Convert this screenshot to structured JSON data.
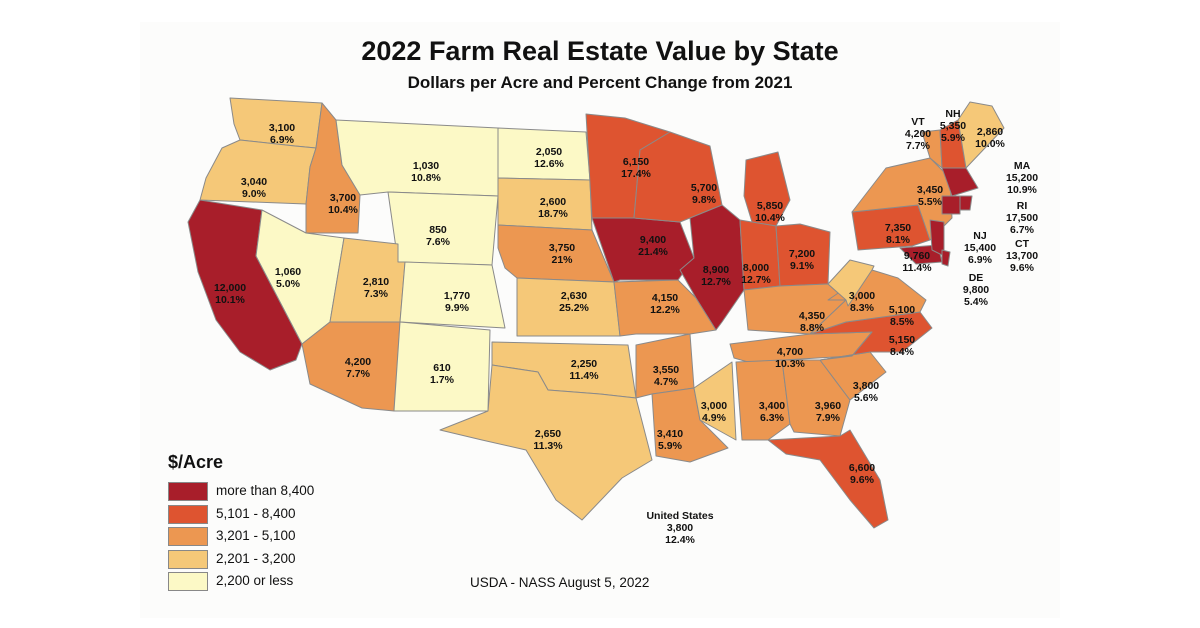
{
  "title": "2022 Farm Real Estate Value by State",
  "subtitle": "Dollars per Acre and Percent Change from 2021",
  "legend": {
    "title": "$/Acre",
    "items": [
      {
        "label": "more than 8,400",
        "color": "#a81e2a"
      },
      {
        "label": "5,101 - 8,400",
        "color": "#de5430"
      },
      {
        "label": "3,201 - 5,100",
        "color": "#ec9751"
      },
      {
        "label": "2,201 - 3,200",
        "color": "#f5c878"
      },
      {
        "label": "2,200 or less",
        "color": "#fcf9c6"
      }
    ]
  },
  "states": [
    {
      "code": "WA",
      "value": "3,100",
      "change": "6.9%",
      "class": 3
    },
    {
      "code": "OR",
      "value": "3,040",
      "change": "9.0%",
      "class": 3
    },
    {
      "code": "CA",
      "value": "12,000",
      "change": "10.1%",
      "class": 0
    },
    {
      "code": "ID",
      "value": "3,700",
      "change": "10.4%",
      "class": 2
    },
    {
      "code": "NV",
      "value": "1,060",
      "change": "5.0%",
      "class": 4
    },
    {
      "code": "MT",
      "value": "1,030",
      "change": "10.8%",
      "class": 4
    },
    {
      "code": "WY",
      "value": "850",
      "change": "7.6%",
      "class": 4
    },
    {
      "code": "UT",
      "value": "2,810",
      "change": "7.3%",
      "class": 3
    },
    {
      "code": "CO",
      "value": "1,770",
      "change": "9.9%",
      "class": 4
    },
    {
      "code": "AZ",
      "value": "4,200",
      "change": "7.7%",
      "class": 2
    },
    {
      "code": "NM",
      "value": "610",
      "change": "1.7%",
      "class": 4
    },
    {
      "code": "ND",
      "value": "2,050",
      "change": "12.6%",
      "class": 4
    },
    {
      "code": "SD",
      "value": "2,600",
      "change": "18.7%",
      "class": 3
    },
    {
      "code": "NE",
      "value": "3,750",
      "change": "21%",
      "class": 2
    },
    {
      "code": "KS",
      "value": "2,630",
      "change": "25.2%",
      "class": 3
    },
    {
      "code": "OK",
      "value": "2,250",
      "change": "11.4%",
      "class": 3
    },
    {
      "code": "TX",
      "value": "2,650",
      "change": "11.3%",
      "class": 3
    },
    {
      "code": "MN",
      "value": "6,150",
      "change": "17.4%",
      "class": 1
    },
    {
      "code": "IA",
      "value": "9,400",
      "change": "21.4%",
      "class": 0
    },
    {
      "code": "MO",
      "value": "4,150",
      "change": "12.2%",
      "class": 2
    },
    {
      "code": "AR",
      "value": "3,550",
      "change": "4.7%",
      "class": 2
    },
    {
      "code": "LA",
      "value": "3,410",
      "change": "5.9%",
      "class": 2
    },
    {
      "code": "WI",
      "value": "5,700",
      "change": "9.8%",
      "class": 1
    },
    {
      "code": "IL",
      "value": "8,900",
      "change": "12.7%",
      "class": 0
    },
    {
      "code": "MI",
      "value": "5,850",
      "change": "10.4%",
      "class": 1
    },
    {
      "code": "IN",
      "value": "8,000",
      "change": "12.7%",
      "class": 1
    },
    {
      "code": "OH",
      "value": "7,200",
      "change": "9.1%",
      "class": 1
    },
    {
      "code": "KY",
      "value": "4,350",
      "change": "8.8%",
      "class": 2
    },
    {
      "code": "TN",
      "value": "4,700",
      "change": "10.3%",
      "class": 2
    },
    {
      "code": "MS",
      "value": "3,000",
      "change": "4.9%",
      "class": 3
    },
    {
      "code": "AL",
      "value": "3,400",
      "change": "6.3%",
      "class": 2
    },
    {
      "code": "GA",
      "value": "3,960",
      "change": "7.9%",
      "class": 2
    },
    {
      "code": "FL",
      "value": "6,600",
      "change": "9.6%",
      "class": 1
    },
    {
      "code": "SC",
      "value": "3,800",
      "change": "5.6%",
      "class": 2
    },
    {
      "code": "NC",
      "value": "5,150",
      "change": "8.4%",
      "class": 1
    },
    {
      "code": "VA",
      "value": "5,100",
      "change": "8.5%",
      "class": 2
    },
    {
      "code": "WV",
      "value": "3,000",
      "change": "8.3%",
      "class": 3
    },
    {
      "code": "PA",
      "value": "7,350",
      "change": "8.1%",
      "class": 1
    },
    {
      "code": "NY",
      "value": "3,450",
      "change": "5.5%",
      "class": 2
    },
    {
      "code": "MD",
      "value": "9,760",
      "change": "11.4%",
      "class": 0
    },
    {
      "code": "VT",
      "value": "4,200",
      "change": "7.7%",
      "class": 2
    },
    {
      "code": "NH",
      "value": "5,350",
      "change": "5.9%",
      "class": 1
    },
    {
      "code": "ME",
      "value": "2,860",
      "change": "10.0%",
      "class": 3
    },
    {
      "code": "MA",
      "value": "15,200",
      "change": "10.9%",
      "class": 0
    },
    {
      "code": "RI",
      "value": "17,500",
      "change": "6.7%",
      "class": 0
    },
    {
      "code": "CT",
      "value": "13,700",
      "change": "9.6%",
      "class": 0
    },
    {
      "code": "NJ",
      "value": "15,400",
      "change": "6.9%",
      "class": 0
    },
    {
      "code": "DE",
      "value": "9,800",
      "change": "5.4%",
      "class": 0
    }
  ],
  "us_total": {
    "label": "United States",
    "value": "3,800",
    "change": "12.4%"
  },
  "source": "USDA - NASS August 5, 2022"
}
